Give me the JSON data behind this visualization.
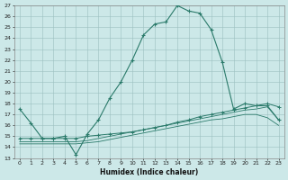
{
  "xlabel": "Humidex (Indice chaleur)",
  "bg_color": "#cce8e8",
  "grid_color": "#9bbfbf",
  "line_color": "#2a7a6a",
  "xlim": [
    -0.5,
    23.5
  ],
  "ylim": [
    13,
    27
  ],
  "xticks": [
    0,
    1,
    2,
    3,
    4,
    5,
    6,
    7,
    8,
    9,
    10,
    11,
    12,
    13,
    14,
    15,
    16,
    17,
    18,
    19,
    20,
    21,
    22,
    23
  ],
  "yticks": [
    13,
    14,
    15,
    16,
    17,
    18,
    19,
    20,
    21,
    22,
    23,
    24,
    25,
    26,
    27
  ],
  "curve1_x": [
    0,
    1,
    2,
    3,
    4,
    5,
    6,
    7,
    8,
    9,
    10,
    11,
    12,
    13,
    14,
    15,
    16,
    17,
    18,
    19,
    20,
    21,
    22,
    23
  ],
  "curve1_y": [
    17.5,
    16.2,
    14.8,
    14.8,
    15.0,
    13.3,
    15.2,
    16.5,
    18.5,
    20.0,
    22.0,
    24.3,
    25.3,
    25.5,
    27.0,
    26.5,
    26.3,
    24.8,
    21.8,
    17.5,
    18.0,
    17.8,
    17.8,
    16.5
  ],
  "curve2_x": [
    0,
    1,
    2,
    3,
    4,
    5,
    6,
    7,
    8,
    9,
    10,
    11,
    12,
    13,
    14,
    15,
    16,
    17,
    18,
    19,
    20,
    21,
    22,
    23
  ],
  "curve2_y": [
    14.8,
    14.8,
    14.8,
    14.8,
    14.8,
    14.8,
    15.0,
    15.1,
    15.2,
    15.3,
    15.4,
    15.6,
    15.8,
    16.0,
    16.3,
    16.5,
    16.8,
    17.0,
    17.2,
    17.4,
    17.6,
    17.8,
    18.0,
    17.7
  ],
  "curve3_x": [
    0,
    1,
    2,
    3,
    4,
    5,
    6,
    7,
    8,
    9,
    10,
    11,
    12,
    13,
    14,
    15,
    16,
    17,
    18,
    19,
    20,
    21,
    22,
    23
  ],
  "curve3_y": [
    14.5,
    14.5,
    14.5,
    14.5,
    14.5,
    14.5,
    14.6,
    14.8,
    15.0,
    15.2,
    15.4,
    15.6,
    15.8,
    16.0,
    16.2,
    16.4,
    16.6,
    16.8,
    17.0,
    17.2,
    17.4,
    17.5,
    17.7,
    16.5
  ],
  "curve4_x": [
    0,
    1,
    2,
    3,
    4,
    5,
    6,
    7,
    8,
    9,
    10,
    11,
    12,
    13,
    14,
    15,
    16,
    17,
    18,
    19,
    20,
    21,
    22,
    23
  ],
  "curve4_y": [
    14.3,
    14.3,
    14.3,
    14.3,
    14.3,
    14.3,
    14.4,
    14.5,
    14.7,
    14.9,
    15.1,
    15.3,
    15.5,
    15.7,
    15.9,
    16.1,
    16.3,
    16.5,
    16.6,
    16.8,
    17.0,
    17.0,
    16.7,
    16.0
  ]
}
